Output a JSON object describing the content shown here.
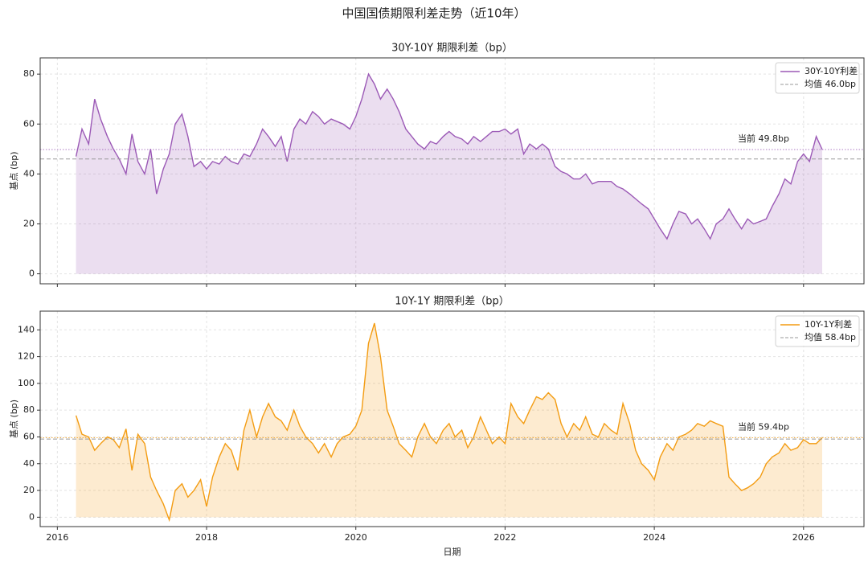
{
  "title": "中国国债期限利差走势（近10年）",
  "chart_data": [
    {
      "type": "line",
      "title": "30Y-10Y 期限利差（bp）",
      "ylabel": "基点 (bp)",
      "x": [
        2016.25,
        2016.33,
        2016.42,
        2016.5,
        2016.58,
        2016.67,
        2016.75,
        2016.83,
        2016.92,
        2017,
        2017.08,
        2017.17,
        2017.25,
        2017.33,
        2017.42,
        2017.5,
        2017.58,
        2017.67,
        2017.75,
        2017.83,
        2017.92,
        2018,
        2018.08,
        2018.17,
        2018.25,
        2018.33,
        2018.42,
        2018.5,
        2018.58,
        2018.67,
        2018.75,
        2018.83,
        2018.92,
        2019,
        2019.08,
        2019.17,
        2019.25,
        2019.33,
        2019.42,
        2019.5,
        2019.58,
        2019.67,
        2019.75,
        2019.83,
        2019.92,
        2020,
        2020.08,
        2020.17,
        2020.25,
        2020.33,
        2020.42,
        2020.5,
        2020.58,
        2020.67,
        2020.75,
        2020.83,
        2020.92,
        2021,
        2021.08,
        2021.17,
        2021.25,
        2021.33,
        2021.42,
        2021.5,
        2021.58,
        2021.67,
        2021.75,
        2021.83,
        2021.92,
        2022,
        2022.08,
        2022.17,
        2022.25,
        2022.33,
        2022.42,
        2022.5,
        2022.58,
        2022.67,
        2022.75,
        2022.83,
        2022.92,
        2023,
        2023.08,
        2023.17,
        2023.25,
        2023.33,
        2023.42,
        2023.5,
        2023.58,
        2023.67,
        2023.75,
        2023.83,
        2023.92,
        2024,
        2024.08,
        2024.17,
        2024.25,
        2024.33,
        2024.42,
        2024.5,
        2024.58,
        2024.67,
        2024.75,
        2024.83,
        2024.92,
        2025,
        2025.08,
        2025.17,
        2025.25,
        2025.33,
        2025.42,
        2025.5,
        2025.58,
        2025.67,
        2025.75,
        2025.83,
        2025.92,
        2026,
        2026.08,
        2026.17,
        2026.25
      ],
      "series": [
        {
          "name": "30Y-10Y利差",
          "color": "#9b59b6",
          "fill": "rgba(155,89,182,0.2)",
          "values": [
            47,
            58,
            52,
            70,
            62,
            55,
            50,
            46,
            40,
            56,
            45,
            40,
            50,
            32,
            42,
            48,
            60,
            64,
            55,
            43,
            45,
            42,
            45,
            44,
            47,
            45,
            44,
            48,
            47,
            52,
            58,
            55,
            51,
            55,
            45,
            58,
            62,
            60,
            65,
            63,
            60,
            62,
            61,
            60,
            58,
            63,
            70,
            80,
            76,
            70,
            74,
            70,
            65,
            58,
            55,
            52,
            50,
            53,
            52,
            55,
            57,
            55,
            54,
            52,
            55,
            53,
            55,
            57,
            57,
            58,
            56,
            58,
            48,
            52,
            50,
            52,
            50,
            43,
            41,
            40,
            38,
            38,
            40,
            36,
            37,
            37,
            37,
            35,
            34,
            32,
            30,
            28,
            26,
            22,
            18,
            14,
            20,
            25,
            24,
            20,
            22,
            18,
            14,
            20,
            22,
            26,
            22,
            18,
            22,
            20,
            21,
            22,
            27,
            32,
            38,
            36,
            45,
            48,
            45,
            55,
            49.8
          ]
        }
      ],
      "mean_line": {
        "value": 46.0,
        "label": "均值 46.0bp",
        "color": "#999999"
      },
      "current_line": {
        "value": 49.8,
        "label": "当前 49.8bp"
      },
      "xlim": [
        2015.77,
        2026.81
      ],
      "xticks": [
        2016,
        2018,
        2020,
        2022,
        2024,
        2026
      ],
      "ylim": [
        -4,
        86.5
      ],
      "yticks": [
        0,
        20,
        40,
        60,
        80
      ],
      "grid": true,
      "legend": "upper right"
    },
    {
      "type": "line",
      "title": "10Y-1Y 期限利差（bp）",
      "ylabel": "基点 (bp)",
      "xlabel": "日期",
      "x": [
        2016.25,
        2016.33,
        2016.42,
        2016.5,
        2016.58,
        2016.67,
        2016.75,
        2016.83,
        2016.92,
        2017,
        2017.08,
        2017.17,
        2017.25,
        2017.33,
        2017.42,
        2017.5,
        2017.58,
        2017.67,
        2017.75,
        2017.83,
        2017.92,
        2018,
        2018.08,
        2018.17,
        2018.25,
        2018.33,
        2018.42,
        2018.5,
        2018.58,
        2018.67,
        2018.75,
        2018.83,
        2018.92,
        2019,
        2019.08,
        2019.17,
        2019.25,
        2019.33,
        2019.42,
        2019.5,
        2019.58,
        2019.67,
        2019.75,
        2019.83,
        2019.92,
        2020,
        2020.08,
        2020.17,
        2020.25,
        2020.33,
        2020.42,
        2020.5,
        2020.58,
        2020.67,
        2020.75,
        2020.83,
        2020.92,
        2021,
        2021.08,
        2021.17,
        2021.25,
        2021.33,
        2021.42,
        2021.5,
        2021.58,
        2021.67,
        2021.75,
        2021.83,
        2021.92,
        2022,
        2022.08,
        2022.17,
        2022.25,
        2022.33,
        2022.42,
        2022.5,
        2022.58,
        2022.67,
        2022.75,
        2022.83,
        2022.92,
        2023,
        2023.08,
        2023.17,
        2023.25,
        2023.33,
        2023.42,
        2023.5,
        2023.58,
        2023.67,
        2023.75,
        2023.83,
        2023.92,
        2024,
        2024.08,
        2024.17,
        2024.25,
        2024.33,
        2024.42,
        2024.5,
        2024.58,
        2024.67,
        2024.75,
        2024.83,
        2024.92,
        2025,
        2025.08,
        2025.17,
        2025.25,
        2025.33,
        2025.42,
        2025.5,
        2025.58,
        2025.67,
        2025.75,
        2025.83,
        2025.92,
        2026,
        2026.08,
        2026.17,
        2026.25
      ],
      "series": [
        {
          "name": "10Y-1Y利差",
          "color": "#f39c12",
          "fill": "rgba(243,156,18,0.2)",
          "values": [
            76,
            62,
            60,
            50,
            55,
            60,
            58,
            52,
            66,
            35,
            62,
            55,
            30,
            20,
            10,
            -2,
            20,
            25,
            15,
            20,
            28,
            8,
            30,
            45,
            55,
            50,
            35,
            65,
            80,
            60,
            75,
            85,
            75,
            72,
            65,
            80,
            68,
            60,
            55,
            48,
            55,
            45,
            55,
            60,
            62,
            68,
            80,
            130,
            145,
            120,
            80,
            68,
            55,
            50,
            45,
            60,
            70,
            60,
            55,
            65,
            70,
            60,
            65,
            52,
            60,
            75,
            65,
            55,
            60,
            55,
            85,
            75,
            70,
            80,
            90,
            88,
            93,
            88,
            70,
            60,
            70,
            65,
            75,
            62,
            60,
            70,
            65,
            62,
            85,
            70,
            50,
            40,
            35,
            28,
            45,
            55,
            50,
            60,
            62,
            65,
            70,
            68,
            72,
            70,
            68,
            30,
            25,
            20,
            22,
            25,
            30,
            40,
            45,
            48,
            55,
            50,
            52,
            58,
            55,
            55,
            59.4
          ]
        }
      ],
      "mean_line": {
        "value": 58.4,
        "label": "均值 58.4bp",
        "color": "#999999"
      },
      "current_line": {
        "value": 59.4,
        "label": "当前 59.4bp"
      },
      "xlim": [
        2015.77,
        2026.81
      ],
      "xticks": [
        2016,
        2018,
        2020,
        2022,
        2024,
        2026
      ],
      "ylim": [
        -7,
        154
      ],
      "yticks": [
        0,
        20,
        40,
        60,
        80,
        100,
        120,
        140
      ],
      "grid": true,
      "legend": "upper right"
    }
  ]
}
